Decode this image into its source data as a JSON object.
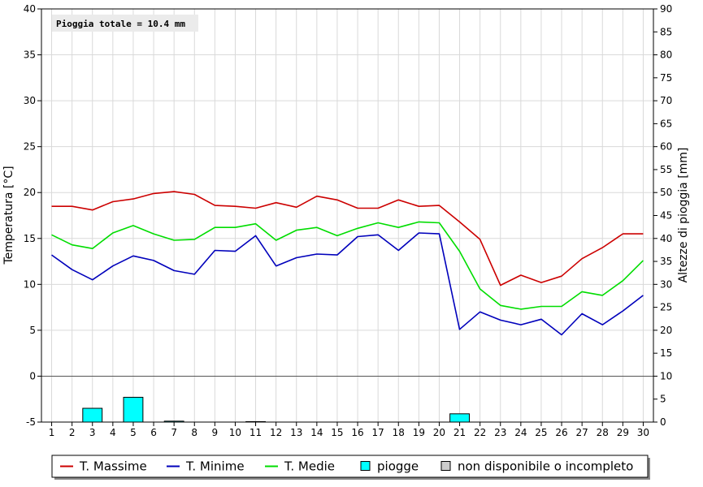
{
  "chart_data": {
    "type": "line",
    "annotation": "Pioggia totale = 10.4 mm",
    "x": [
      1,
      2,
      3,
      4,
      5,
      6,
      7,
      8,
      9,
      10,
      11,
      12,
      13,
      14,
      15,
      16,
      17,
      18,
      19,
      20,
      21,
      22,
      23,
      24,
      25,
      26,
      27,
      28,
      29,
      30
    ],
    "xlim": [
      0.5,
      30.5
    ],
    "y_left": {
      "label": "Temperatura [°C]",
      "range": [
        -5,
        40
      ],
      "ticks": [
        -5,
        0,
        5,
        10,
        15,
        20,
        25,
        30,
        35,
        40
      ]
    },
    "y_right": {
      "label": "Altezze di pioggia [mm]",
      "range": [
        0,
        90
      ],
      "ticks": [
        0,
        5,
        10,
        15,
        20,
        25,
        30,
        35,
        40,
        45,
        50,
        55,
        60,
        65,
        70,
        75,
        80,
        85,
        90
      ]
    },
    "grid": true,
    "series": [
      {
        "name": "T. Massime",
        "color": "#cc0000",
        "axis": "left",
        "values": [
          18.5,
          18.5,
          18.1,
          19.0,
          19.3,
          19.9,
          20.1,
          19.8,
          18.6,
          18.5,
          18.3,
          18.9,
          18.4,
          19.6,
          19.2,
          18.3,
          18.3,
          19.2,
          18.5,
          18.6,
          16.8,
          14.9,
          9.9,
          11.0,
          10.2,
          10.9,
          12.8,
          14.0,
          15.5,
          15.5
        ]
      },
      {
        "name": "T. Minime",
        "color": "#0000bb",
        "axis": "left",
        "values": [
          13.2,
          11.6,
          10.5,
          12.0,
          13.1,
          12.6,
          11.5,
          11.1,
          13.7,
          13.6,
          15.3,
          12.0,
          12.9,
          13.3,
          13.2,
          15.2,
          15.4,
          13.7,
          15.6,
          15.5,
          5.1,
          7.0,
          6.1,
          5.6,
          6.2,
          4.5,
          6.8,
          5.6,
          7.1,
          8.8
        ]
      },
      {
        "name": "T. Medie",
        "color": "#00dd00",
        "axis": "left",
        "values": [
          15.4,
          14.3,
          13.9,
          15.6,
          16.4,
          15.5,
          14.8,
          14.9,
          16.2,
          16.2,
          16.6,
          14.8,
          15.9,
          16.2,
          15.3,
          16.1,
          16.7,
          16.2,
          16.8,
          16.7,
          13.6,
          9.5,
          7.7,
          7.3,
          7.6,
          7.6,
          9.2,
          8.8,
          10.4,
          12.6
        ]
      },
      {
        "name": "piogge",
        "color": "#00ffff",
        "axis": "right",
        "kind": "bar",
        "values": [
          0,
          0,
          3.0,
          0,
          5.4,
          0,
          0.2,
          0,
          0,
          0,
          0.1,
          0,
          0,
          0,
          0,
          0,
          0,
          0,
          0,
          0,
          1.8,
          0,
          0,
          0,
          0,
          0,
          0,
          0,
          0,
          0
        ]
      }
    ],
    "legend": {
      "placement": "bottom",
      "items": [
        {
          "label": "T. Massime",
          "symbol": "line",
          "color": "#cc0000"
        },
        {
          "label": "T. Minime",
          "symbol": "line",
          "color": "#0000bb"
        },
        {
          "label": "T. Medie",
          "symbol": "line",
          "color": "#00dd00"
        },
        {
          "label": "piogge",
          "symbol": "box",
          "color": "#00ffff"
        },
        {
          "label": "non disponibile o incompleto",
          "symbol": "box",
          "color": "#cccccc"
        }
      ]
    }
  }
}
